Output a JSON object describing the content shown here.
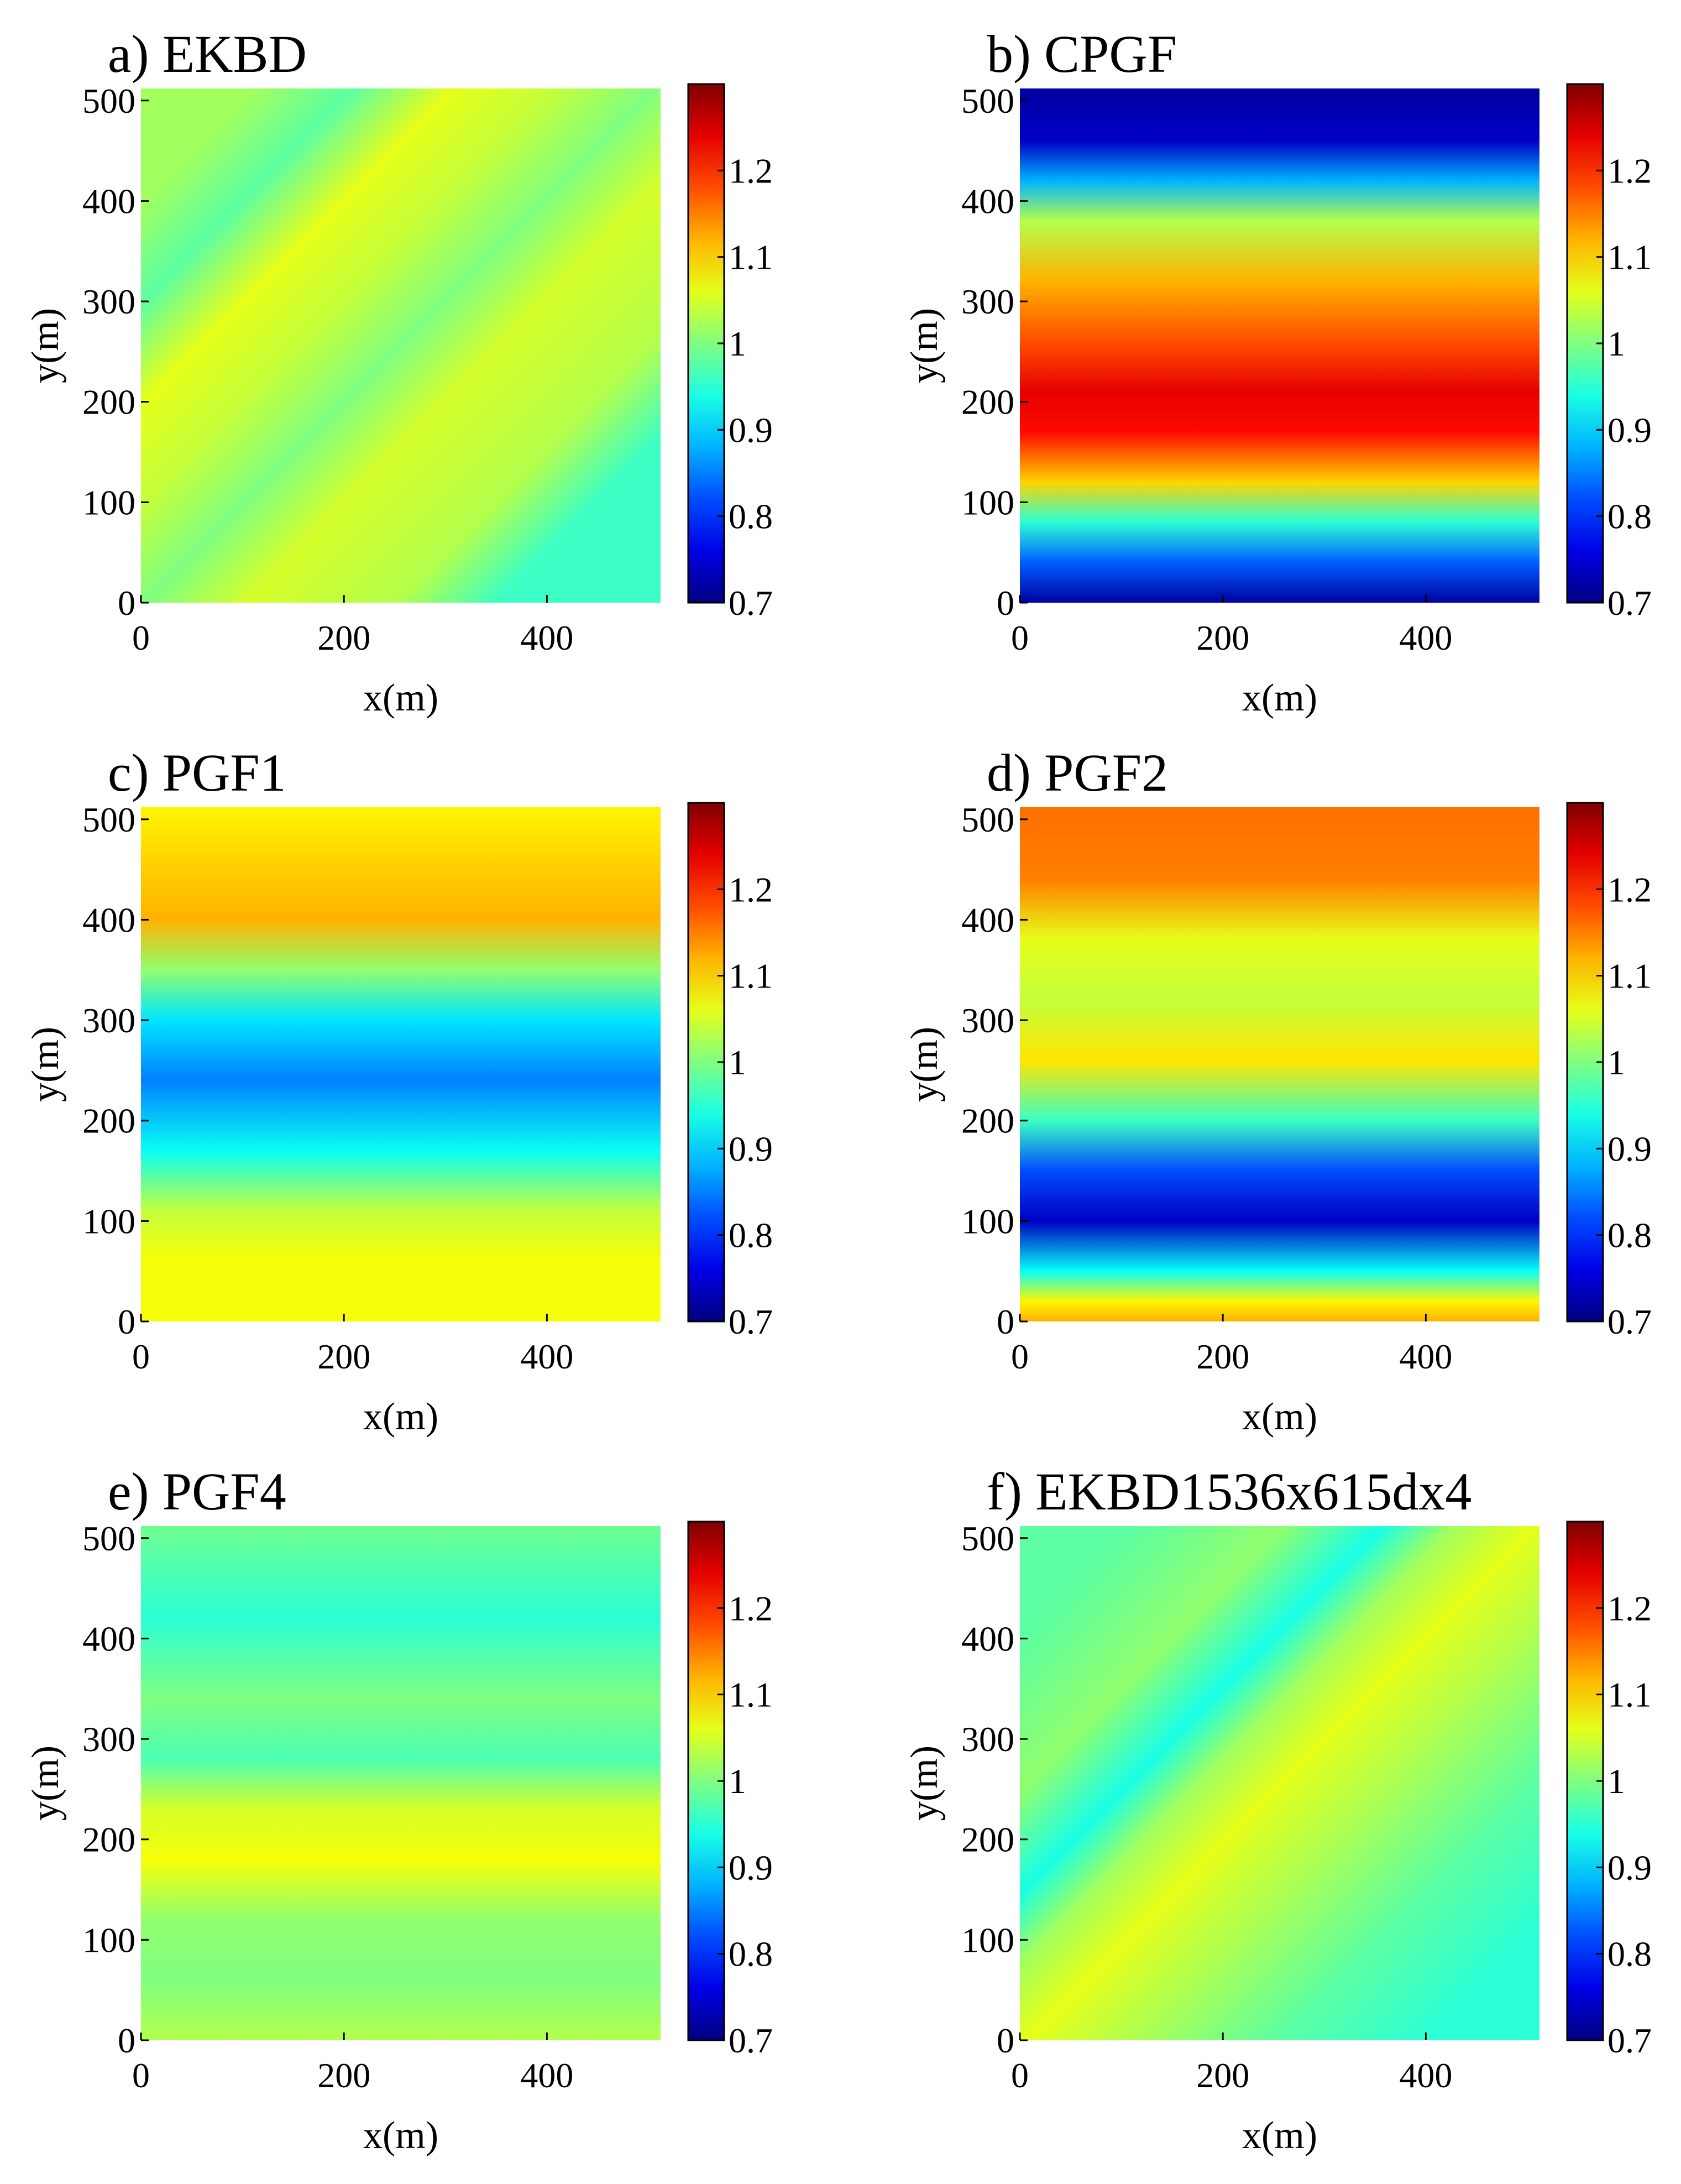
{
  "chart_data": [
    {
      "type": "heatmap",
      "title": "a) EKBD",
      "xlabel": "x(m)",
      "ylabel": "y(m)",
      "xlim": [
        0,
        512
      ],
      "ylim": [
        0,
        512
      ],
      "xticks": [
        0,
        200,
        400
      ],
      "yticks": [
        0,
        100,
        200,
        300,
        400,
        500
      ],
      "colorbar": {
        "range": [
          0.7,
          1.3
        ],
        "ticks": [
          0.7,
          0.8,
          0.9,
          1,
          1.1,
          1.2
        ]
      },
      "pattern": {
        "kind": "diagonal",
        "levels": [
          {
            "d": -350,
            "v": 0.96
          },
          {
            "d": -250,
            "v": 1.03
          },
          {
            "d": -100,
            "v": 1.05
          },
          {
            "d": 0,
            "v": 1.0
          },
          {
            "d": 100,
            "v": 1.04
          },
          {
            "d": 200,
            "v": 1.06
          },
          {
            "d": 300,
            "v": 0.98
          },
          {
            "d": 400,
            "v": 1.02
          }
        ]
      }
    },
    {
      "type": "heatmap",
      "title": "b) CPGF",
      "xlabel": "x(m)",
      "ylabel": "y(m)",
      "xlim": [
        0,
        512
      ],
      "ylim": [
        0,
        512
      ],
      "xticks": [
        0,
        200,
        400
      ],
      "yticks": [
        0,
        100,
        200,
        300,
        400,
        500
      ],
      "colorbar": {
        "range": [
          0.7,
          1.3
        ],
        "ticks": [
          0.7,
          0.8,
          0.9,
          1,
          1.1,
          1.2
        ]
      },
      "pattern": {
        "kind": "horizontal",
        "levels": [
          {
            "y": 0,
            "v": 0.72
          },
          {
            "y": 40,
            "v": 0.83
          },
          {
            "y": 80,
            "v": 0.95
          },
          {
            "y": 120,
            "v": 1.1
          },
          {
            "y": 170,
            "v": 1.22
          },
          {
            "y": 210,
            "v": 1.24
          },
          {
            "y": 260,
            "v": 1.18
          },
          {
            "y": 320,
            "v": 1.12
          },
          {
            "y": 380,
            "v": 1.03
          },
          {
            "y": 420,
            "v": 0.88
          },
          {
            "y": 460,
            "v": 0.74
          },
          {
            "y": 512,
            "v": 0.72
          }
        ]
      }
    },
    {
      "type": "heatmap",
      "title": "c) PGF1",
      "xlabel": "x(m)",
      "ylabel": "y(m)",
      "xlim": [
        0,
        512
      ],
      "ylim": [
        0,
        512
      ],
      "xticks": [
        0,
        200,
        400
      ],
      "yticks": [
        0,
        100,
        200,
        300,
        400,
        500
      ],
      "colorbar": {
        "range": [
          0.7,
          1.3
        ],
        "ticks": [
          0.7,
          0.8,
          0.9,
          1,
          1.1,
          1.2
        ]
      },
      "pattern": {
        "kind": "horizontal",
        "levels": [
          {
            "y": 0,
            "v": 1.07
          },
          {
            "y": 60,
            "v": 1.07
          },
          {
            "y": 110,
            "v": 1.04
          },
          {
            "y": 170,
            "v": 0.93
          },
          {
            "y": 240,
            "v": 0.85
          },
          {
            "y": 300,
            "v": 0.91
          },
          {
            "y": 350,
            "v": 1.01
          },
          {
            "y": 400,
            "v": 1.12
          },
          {
            "y": 460,
            "v": 1.1
          },
          {
            "y": 512,
            "v": 1.08
          }
        ]
      }
    },
    {
      "type": "heatmap",
      "title": "d) PGF2",
      "xlabel": "x(m)",
      "ylabel": "y(m)",
      "xlim": [
        0,
        512
      ],
      "ylim": [
        0,
        512
      ],
      "xticks": [
        0,
        200,
        400
      ],
      "yticks": [
        0,
        100,
        200,
        300,
        400,
        500
      ],
      "colorbar": {
        "range": [
          0.7,
          1.3
        ],
        "ticks": [
          0.7,
          0.8,
          0.9,
          1,
          1.1,
          1.2
        ]
      },
      "pattern": {
        "kind": "horizontal",
        "levels": [
          {
            "y": 0,
            "v": 1.12
          },
          {
            "y": 20,
            "v": 1.08
          },
          {
            "y": 50,
            "v": 0.93
          },
          {
            "y": 100,
            "v": 0.74
          },
          {
            "y": 150,
            "v": 0.82
          },
          {
            "y": 200,
            "v": 0.96
          },
          {
            "y": 260,
            "v": 1.09
          },
          {
            "y": 320,
            "v": 1.04
          },
          {
            "y": 380,
            "v": 1.06
          },
          {
            "y": 440,
            "v": 1.15
          },
          {
            "y": 512,
            "v": 1.16
          }
        ]
      }
    },
    {
      "type": "heatmap",
      "title": "e) PGF4",
      "xlabel": "x(m)",
      "ylabel": "y(m)",
      "xlim": [
        0,
        512
      ],
      "ylim": [
        0,
        512
      ],
      "xticks": [
        0,
        200,
        400
      ],
      "yticks": [
        0,
        100,
        200,
        300,
        400,
        500
      ],
      "colorbar": {
        "range": [
          0.7,
          1.3
        ],
        "ticks": [
          0.7,
          0.8,
          0.9,
          1,
          1.1,
          1.2
        ]
      },
      "pattern": {
        "kind": "horizontal",
        "levels": [
          {
            "y": 0,
            "v": 1.03
          },
          {
            "y": 60,
            "v": 1.0
          },
          {
            "y": 120,
            "v": 1.01
          },
          {
            "y": 180,
            "v": 1.07
          },
          {
            "y": 230,
            "v": 1.05
          },
          {
            "y": 280,
            "v": 0.97
          },
          {
            "y": 340,
            "v": 1.0
          },
          {
            "y": 420,
            "v": 0.95
          },
          {
            "y": 512,
            "v": 0.99
          }
        ]
      }
    },
    {
      "type": "heatmap",
      "title": "f) EKBD1536x615dx4",
      "xlabel": "x(m)",
      "ylabel": "y(m)",
      "xlim": [
        0,
        512
      ],
      "ylim": [
        0,
        512
      ],
      "xticks": [
        0,
        200,
        400
      ],
      "yticks": [
        0,
        100,
        200,
        300,
        400,
        500
      ],
      "colorbar": {
        "range": [
          0.7,
          1.3
        ],
        "ticks": [
          0.7,
          0.8,
          0.9,
          1,
          1.1,
          1.2
        ]
      },
      "pattern": {
        "kind": "diagonal",
        "levels": [
          {
            "d": -400,
            "v": 0.95
          },
          {
            "d": -250,
            "v": 0.98
          },
          {
            "d": -100,
            "v": 1.03
          },
          {
            "d": 0,
            "v": 1.06
          },
          {
            "d": 80,
            "v": 1.02
          },
          {
            "d": 150,
            "v": 0.94
          },
          {
            "d": 250,
            "v": 1.01
          },
          {
            "d": 400,
            "v": 0.98
          }
        ]
      }
    }
  ]
}
